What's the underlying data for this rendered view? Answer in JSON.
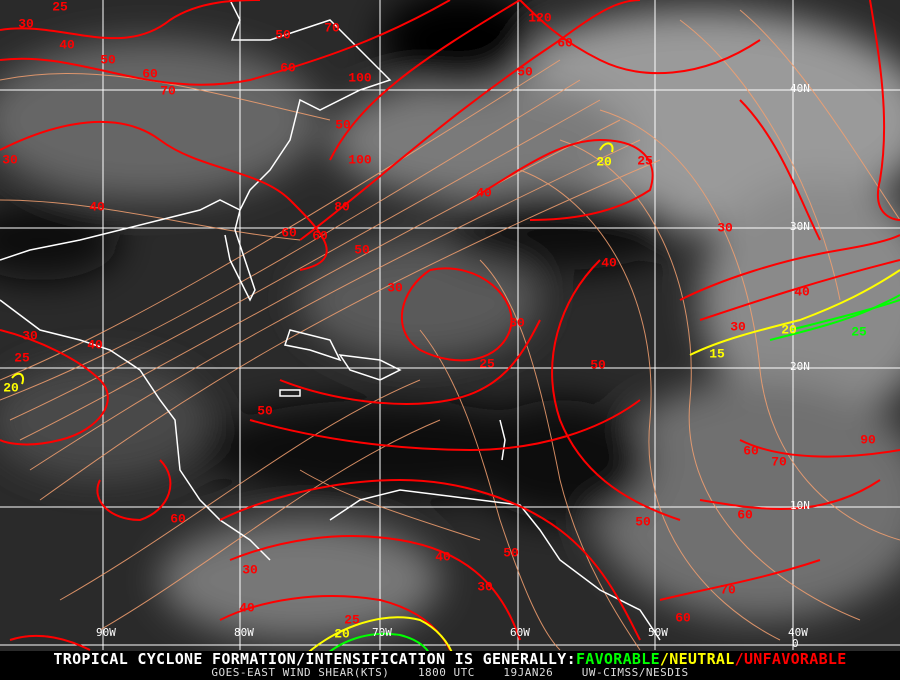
{
  "banner": {
    "prefix": "TROPICAL CYCLONE FORMATION/INTENSIFICATION IS GENERALLY:",
    "favorable": "FAVORABLE",
    "sep1": "/",
    "neutral": "NEUTRAL",
    "sep2": "/",
    "unfavorable": "UNFAVORABLE",
    "product": "GOES-EAST WIND SHEAR(KTS)",
    "time": "1800 UTC",
    "date": "19JAN26",
    "source": "UW-CIMSS/NESDIS"
  },
  "grid": {
    "longitudes": [
      "90W",
      "80W",
      "70W",
      "60W",
      "50W",
      "40W"
    ],
    "latitudes": [
      "40N",
      "30N",
      "20N",
      "10N",
      "0"
    ]
  },
  "contour_labels": {
    "red": [
      "30",
      "25",
      "40",
      "50",
      "60",
      "70",
      "50",
      "60",
      "70",
      "100",
      "120",
      "60",
      "50",
      "50",
      "100",
      "40",
      "25",
      "30",
      "40",
      "60",
      "80",
      "60",
      "50",
      "30",
      "40",
      "30",
      "30",
      "25",
      "50",
      "30",
      "25",
      "40",
      "50",
      "30",
      "40",
      "60",
      "70",
      "90",
      "60",
      "50",
      "60",
      "40",
      "50",
      "30",
      "30",
      "40",
      "25",
      "60",
      "70"
    ],
    "yellow": [
      "20",
      "20",
      "20",
      "15",
      "20"
    ],
    "green": [
      "25"
    ]
  },
  "colors": {
    "favorable": "#00ff00",
    "neutral": "#ffff00",
    "unfavorable": "#ff0000",
    "streamlines": "#f4a070",
    "coastline": "#ffffff",
    "grid": "#ffffff"
  }
}
